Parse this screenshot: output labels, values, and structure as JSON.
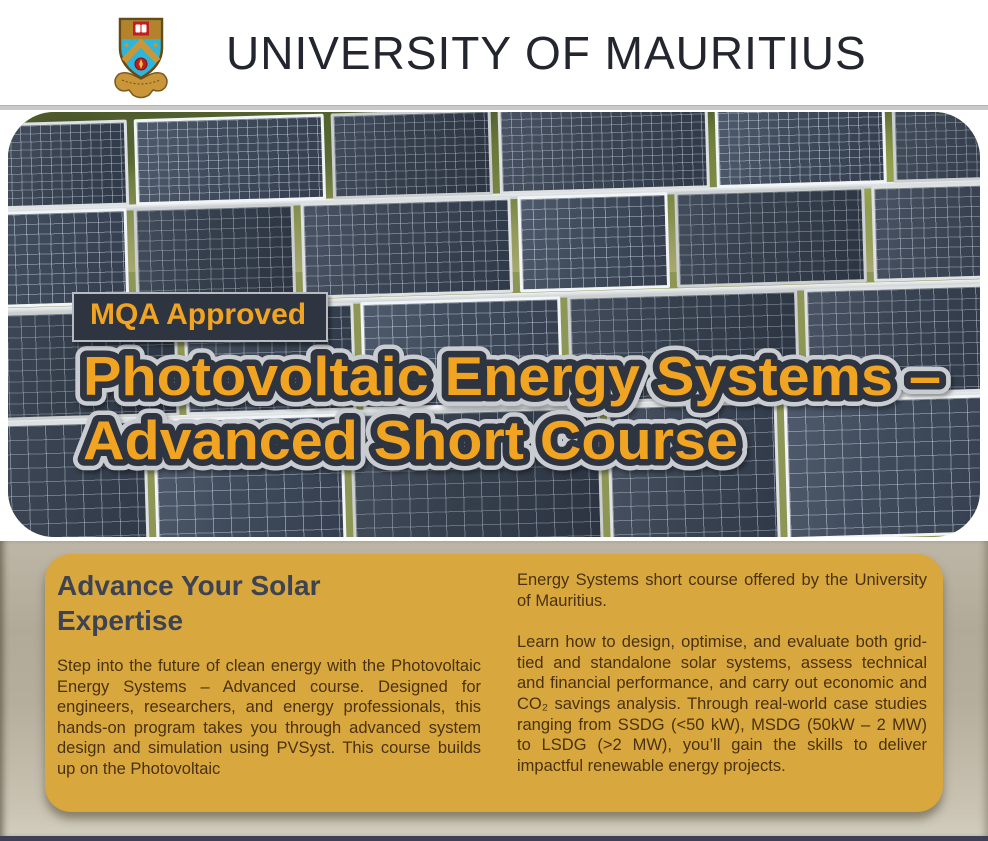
{
  "header": {
    "university_name": "UNIVERSITY OF MAURITIUS",
    "logo": "university-of-mauritius-crest"
  },
  "hero": {
    "badge_label": "MQA Approved",
    "title_line1": "Photovoltaic Energy Systems –",
    "title_line2": "Advanced Short Course"
  },
  "content": {
    "heading": "Advance Your Solar Expertise",
    "left_paragraph": "Step into the future of clean energy with the Photovoltaic Energy Systems – Advanced course. Designed for engineers, researchers, and energy professionals, this hands-on program takes you through advanced system design and simulation using PVSyst. This course builds up on the Photovoltaic",
    "right_paragraph_1": "Energy Systems short course offered by the University of Mauritius.",
    "right_paragraph_2": "Learn how to design, optimise, and evaluate both grid-tied and standalone solar systems, assess technical and financial performance, and carry out economic and CO₂ savings analysis. Through real-world case studies ranging from SSDG (<50 kW), MSDG (50kW – 2 MW) to LSDG (>2 MW), you’ll gain the skills to deliver impactful renewable energy projects."
  },
  "colors": {
    "accent_orange": "#f0a422",
    "badge_background": "#2e3440",
    "title_outline_dark": "#2e3440",
    "title_outline_light": "#c9ccd1",
    "card_gold": "#d8a73d",
    "heading_slate": "#3e4353",
    "body_brown": "#4a3210",
    "section_tan": "#b2aa99",
    "footer_bar_navy": "#3c4156"
  }
}
